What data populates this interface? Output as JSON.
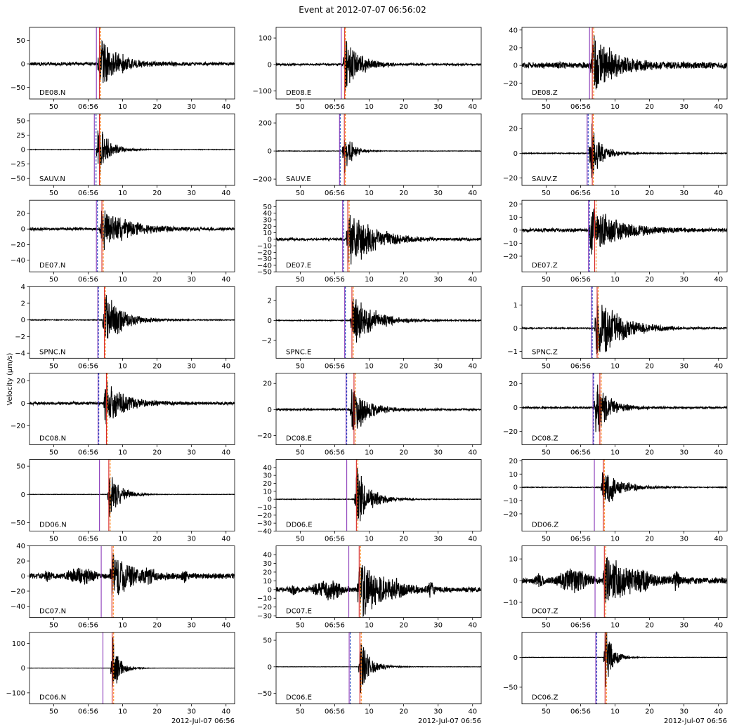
{
  "figure": {
    "title": "Event at 2012-07-07 06:56:02",
    "ylabel": "Velocity (μm/s)",
    "date_label": "2012-Jul-07 06:56",
    "trace_color": "#000000",
    "pick_colors": {
      "purple": "#8a3ab9",
      "blue": "#1f3fbf",
      "orange": "#ff7f0e",
      "red": "#d62728"
    }
  },
  "chart_data": {
    "type": "line",
    "x_axis": {
      "xlim_seconds": [
        43.0,
        102.5
      ],
      "ticks": [
        {
          "value": 50,
          "label": "50"
        },
        {
          "value": 60,
          "label": "06:56"
        },
        {
          "value": 70,
          "label": "10"
        },
        {
          "value": 80,
          "label": "20"
        },
        {
          "value": 90,
          "label": "30"
        },
        {
          "value": 100,
          "label": "40"
        }
      ]
    },
    "panels": [
      {
        "station": "DE08.N",
        "ylim": [
          -75,
          78
        ],
        "yticks": [
          -50,
          0,
          50
        ],
        "onset": 63.2,
        "amp": 70,
        "decay": 5,
        "noise": 4,
        "burst": 0,
        "picks": [
          {
            "t": 62.4,
            "c": "purple",
            "d": false
          },
          {
            "t": 63.3,
            "c": "red",
            "d": false
          },
          {
            "t": 63.6,
            "c": "orange",
            "d": true
          }
        ]
      },
      {
        "station": "DE08.E",
        "ylim": [
          -130,
          140
        ],
        "yticks": [
          -100,
          0,
          100
        ],
        "onset": 62.9,
        "amp": 130,
        "decay": 4,
        "noise": 4,
        "burst": 0,
        "picks": [
          {
            "t": 61.9,
            "c": "purple",
            "d": false
          },
          {
            "t": 62.9,
            "c": "red",
            "d": false
          },
          {
            "t": 63.1,
            "c": "orange",
            "d": true
          }
        ]
      },
      {
        "station": "DE08.Z",
        "ylim": [
          -38,
          43
        ],
        "yticks": [
          -20,
          0,
          20,
          40
        ],
        "onset": 63.3,
        "amp": 40,
        "decay": 6,
        "noise": 4,
        "burst": 0,
        "picks": [
          {
            "t": 62.6,
            "c": "purple",
            "d": false
          },
          {
            "t": 63.4,
            "c": "red",
            "d": false
          },
          {
            "t": 63.8,
            "c": "orange",
            "d": true
          }
        ]
      },
      {
        "station": "SAUV.N",
        "ylim": [
          -62,
          62
        ],
        "yticks": [
          -50,
          -25,
          0,
          25,
          50
        ],
        "onset": 62.8,
        "amp": 58,
        "decay": 3,
        "noise": 0.5,
        "burst": 0,
        "picks": [
          {
            "t": 61.8,
            "c": "purple",
            "d": false
          },
          {
            "t": 62.3,
            "c": "blue",
            "d": true
          },
          {
            "t": 63.3,
            "c": "red",
            "d": false
          },
          {
            "t": 63.6,
            "c": "orange",
            "d": true
          }
        ]
      },
      {
        "station": "SAUV.E",
        "ylim": [
          -245,
          265
        ],
        "yticks": [
          -200,
          0,
          200
        ],
        "onset": 62.6,
        "amp": 250,
        "decay": 2,
        "noise": 2,
        "burst": 0,
        "picks": [
          {
            "t": 61.4,
            "c": "purple",
            "d": false
          },
          {
            "t": 61.6,
            "c": "blue",
            "d": true
          },
          {
            "t": 62.8,
            "c": "red",
            "d": false
          },
          {
            "t": 63.1,
            "c": "orange",
            "d": true
          }
        ]
      },
      {
        "station": "SAUV.Z",
        "ylim": [
          -26,
          32
        ],
        "yticks": [
          -20,
          0,
          20
        ],
        "onset": 62.9,
        "amp": 30,
        "decay": 3,
        "noise": 0.4,
        "burst": 0,
        "picks": [
          {
            "t": 61.9,
            "c": "purple",
            "d": false
          },
          {
            "t": 62.2,
            "c": "blue",
            "d": true
          },
          {
            "t": 63.4,
            "c": "red",
            "d": false
          },
          {
            "t": 63.7,
            "c": "orange",
            "d": true
          }
        ]
      },
      {
        "station": "DE07.N",
        "ylim": [
          -55,
          37
        ],
        "yticks": [
          -40,
          -20,
          0,
          20
        ],
        "onset": 63.8,
        "amp": 34,
        "decay": 7,
        "noise": 2,
        "burst": 0,
        "picks": [
          {
            "t": 62.4,
            "c": "purple",
            "d": false
          },
          {
            "t": 62.7,
            "c": "blue",
            "d": true
          },
          {
            "t": 64.0,
            "c": "red",
            "d": false
          },
          {
            "t": 64.4,
            "c": "orange",
            "d": true
          }
        ]
      },
      {
        "station": "DE07.E",
        "ylim": [
          -50,
          60
        ],
        "yticks": [
          -50,
          -40,
          -30,
          -20,
          -10,
          0,
          10,
          20,
          30,
          40,
          50
        ],
        "onset": 63.8,
        "amp": 55,
        "decay": 7,
        "noise": 2,
        "burst": 0,
        "picks": [
          {
            "t": 62.3,
            "c": "purple",
            "d": false
          },
          {
            "t": 62.6,
            "c": "blue",
            "d": true
          },
          {
            "t": 63.8,
            "c": "red",
            "d": false
          },
          {
            "t": 64.2,
            "c": "orange",
            "d": true
          }
        ]
      },
      {
        "station": "DE07.Z",
        "ylim": [
          -32,
          23
        ],
        "yticks": [
          -20,
          -10,
          0,
          10,
          20
        ],
        "onset": 62.8,
        "amp": 21,
        "decay": 8,
        "noise": 1.5,
        "burst": 0,
        "picks": [
          {
            "t": 62.3,
            "c": "purple",
            "d": false
          },
          {
            "t": 62.6,
            "c": "blue",
            "d": true
          },
          {
            "t": 64.1,
            "c": "red",
            "d": false
          },
          {
            "t": 64.5,
            "c": "orange",
            "d": true
          }
        ]
      },
      {
        "station": "SPNC.N",
        "ylim": [
          -4.6,
          4.0
        ],
        "yticks": [
          -4,
          -2,
          0,
          2,
          4
        ],
        "onset": 64.6,
        "amp": 4,
        "decay": 5,
        "noise": 0.05,
        "burst": 0,
        "picks": [
          {
            "t": 62.8,
            "c": "purple",
            "d": false
          },
          {
            "t": 63.0,
            "c": "blue",
            "d": true
          },
          {
            "t": 64.7,
            "c": "red",
            "d": false
          },
          {
            "t": 65.0,
            "c": "orange",
            "d": true
          }
        ]
      },
      {
        "station": "SPNC.E",
        "ylim": [
          -3.8,
          3.4
        ],
        "yticks": [
          -2,
          0,
          2
        ],
        "onset": 64.9,
        "amp": 3.3,
        "decay": 6,
        "noise": 0.05,
        "burst": 0,
        "picks": [
          {
            "t": 62.9,
            "c": "purple",
            "d": false
          },
          {
            "t": 63.1,
            "c": "blue",
            "d": true
          },
          {
            "t": 65.0,
            "c": "red",
            "d": false
          },
          {
            "t": 65.4,
            "c": "orange",
            "d": true
          }
        ]
      },
      {
        "station": "SPNC.Z",
        "ylim": [
          -1.3,
          1.8
        ],
        "yticks": [
          -1,
          0,
          1
        ],
        "onset": 64.5,
        "amp": 1.7,
        "decay": 7,
        "noise": 0.03,
        "burst": 0,
        "picks": [
          {
            "t": 63.1,
            "c": "purple",
            "d": false
          },
          {
            "t": 63.4,
            "c": "blue",
            "d": true
          },
          {
            "t": 64.8,
            "c": "red",
            "d": false
          },
          {
            "t": 65.1,
            "c": "orange",
            "d": true
          }
        ]
      },
      {
        "station": "DC08.N",
        "ylim": [
          -37,
          27
        ],
        "yticks": [
          -20,
          0,
          20
        ],
        "onset": 64.8,
        "amp": 25,
        "decay": 5,
        "noise": 1.5,
        "burst": 0,
        "picks": [
          {
            "t": 62.9,
            "c": "purple",
            "d": false
          },
          {
            "t": 63.1,
            "c": "blue",
            "d": true
          },
          {
            "t": 65.3,
            "c": "red",
            "d": false
          },
          {
            "t": 65.6,
            "c": "orange",
            "d": true
          }
        ]
      },
      {
        "station": "DC08.E",
        "ylim": [
          -27,
          28
        ],
        "yticks": [
          -20,
          0,
          20
        ],
        "onset": 64.9,
        "amp": 26,
        "decay": 4,
        "noise": 0.8,
        "burst": 0,
        "picks": [
          {
            "t": 63.3,
            "c": "purple",
            "d": false
          },
          {
            "t": 63.5,
            "c": "blue",
            "d": true
          },
          {
            "t": 65.6,
            "c": "red",
            "d": false
          },
          {
            "t": 66.0,
            "c": "orange",
            "d": true
          }
        ]
      },
      {
        "station": "DC08.Z",
        "ylim": [
          -31,
          29
        ],
        "yticks": [
          -20,
          0,
          20
        ],
        "onset": 64.3,
        "amp": 27,
        "decay": 4,
        "noise": 0.8,
        "burst": 0,
        "picks": [
          {
            "t": 63.6,
            "c": "purple",
            "d": false
          },
          {
            "t": 63.8,
            "c": "blue",
            "d": true
          },
          {
            "t": 65.6,
            "c": "red",
            "d": false
          },
          {
            "t": 66.0,
            "c": "orange",
            "d": true
          }
        ]
      },
      {
        "station": "DD06.N",
        "ylim": [
          -65,
          62
        ],
        "yticks": [
          -50,
          0,
          50
        ],
        "onset": 65.9,
        "amp": 58,
        "decay": 3,
        "noise": 0.4,
        "burst": 0,
        "picks": [
          {
            "t": 63.3,
            "c": "purple",
            "d": false
          },
          {
            "t": 66.0,
            "c": "red",
            "d": false
          },
          {
            "t": 66.4,
            "c": "orange",
            "d": true
          }
        ]
      },
      {
        "station": "DD06.E",
        "ylim": [
          -40,
          50
        ],
        "yticks": [
          -40,
          -30,
          -20,
          -10,
          0,
          10,
          20,
          30,
          40
        ],
        "onset": 66.2,
        "amp": 47,
        "decay": 4,
        "noise": 0.4,
        "burst": 0,
        "picks": [
          {
            "t": 63.5,
            "c": "purple",
            "d": false
          },
          {
            "t": 66.3,
            "c": "red",
            "d": false
          },
          {
            "t": 66.7,
            "c": "orange",
            "d": true
          }
        ]
      },
      {
        "station": "DD06.Z",
        "ylim": [
          -33,
          21
        ],
        "yticks": [
          -20,
          -10,
          0,
          10,
          20
        ],
        "onset": 66.3,
        "amp": 19,
        "decay": 5,
        "noise": 0.3,
        "burst": 0,
        "picks": [
          {
            "t": 64.0,
            "c": "purple",
            "d": false
          },
          {
            "t": 66.6,
            "c": "red",
            "d": false
          },
          {
            "t": 66.9,
            "c": "orange",
            "d": true
          }
        ]
      },
      {
        "station": "DC07.N",
        "ylim": [
          -55,
          40
        ],
        "yticks": [
          -40,
          -20,
          0,
          20,
          40
        ],
        "onset": 66.8,
        "amp": 38,
        "decay": 5,
        "noise": 4,
        "burst": 10,
        "picks": [
          {
            "t": 63.8,
            "c": "purple",
            "d": false
          },
          {
            "t": 66.9,
            "c": "red",
            "d": false
          },
          {
            "t": 67.3,
            "c": "orange",
            "d": true
          }
        ]
      },
      {
        "station": "DC07.E",
        "ylim": [
          -32,
          50
        ],
        "yticks": [
          -30,
          -20,
          -10,
          0,
          10,
          20,
          30,
          40
        ],
        "onset": 67.0,
        "amp": 44,
        "decay": 6,
        "noise": 3,
        "burst": 12,
        "picks": [
          {
            "t": 64.1,
            "c": "purple",
            "d": false
          },
          {
            "t": 67.1,
            "c": "red",
            "d": false
          },
          {
            "t": 67.5,
            "c": "orange",
            "d": true
          }
        ]
      },
      {
        "station": "DC07.Z",
        "ylim": [
          -17,
          16
        ],
        "yticks": [
          -10,
          0,
          10
        ],
        "onset": 66.9,
        "amp": 15,
        "decay": 7,
        "noise": 1.5,
        "burst": 6,
        "picks": [
          {
            "t": 64.2,
            "c": "purple",
            "d": false
          },
          {
            "t": 66.9,
            "c": "red",
            "d": false
          },
          {
            "t": 67.3,
            "c": "orange",
            "d": true
          }
        ]
      },
      {
        "station": "DC06.N",
        "ylim": [
          -145,
          145
        ],
        "yticks": [
          -100,
          0,
          100
        ],
        "onset": 67.0,
        "amp": 140,
        "decay": 2,
        "noise": 0.5,
        "burst": 0,
        "picks": [
          {
            "t": 64.3,
            "c": "purple",
            "d": false
          },
          {
            "t": 67.0,
            "c": "red",
            "d": false
          },
          {
            "t": 67.4,
            "c": "orange",
            "d": true
          }
        ]
      },
      {
        "station": "DC06.E",
        "ylim": [
          -70,
          65
        ],
        "yticks": [
          -50,
          0,
          50
        ],
        "onset": 67.3,
        "amp": 60,
        "decay": 3,
        "noise": 0.3,
        "burst": 0,
        "picks": [
          {
            "t": 64.2,
            "c": "purple",
            "d": false
          },
          {
            "t": 64.5,
            "c": "blue",
            "d": true
          },
          {
            "t": 67.3,
            "c": "red",
            "d": false
          },
          {
            "t": 67.7,
            "c": "orange",
            "d": true
          }
        ]
      },
      {
        "station": "DC06.Z",
        "ylim": [
          -78,
          42
        ],
        "yticks": [
          -50,
          0
        ],
        "onset": 67.1,
        "amp": 70,
        "decay": 2,
        "noise": 0.3,
        "burst": 0,
        "picks": [
          {
            "t": 64.4,
            "c": "purple",
            "d": false
          },
          {
            "t": 64.7,
            "c": "blue",
            "d": true
          },
          {
            "t": 67.1,
            "c": "red",
            "d": false
          },
          {
            "t": 67.5,
            "c": "orange",
            "d": true
          }
        ]
      }
    ]
  }
}
